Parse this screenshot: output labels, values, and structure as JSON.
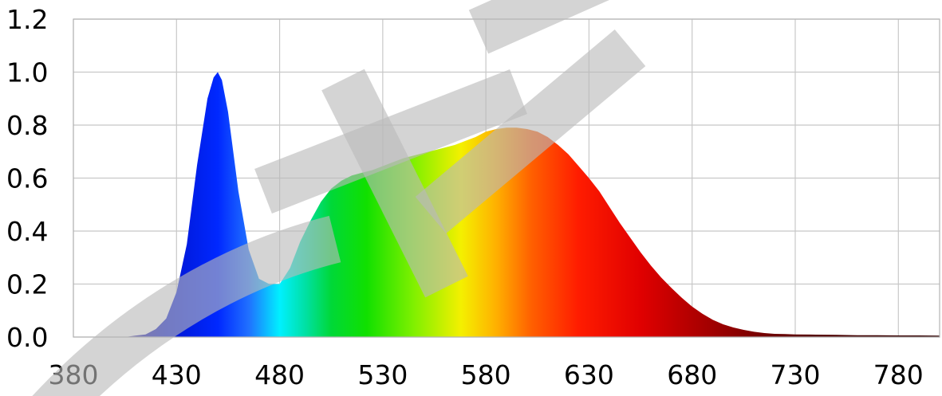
{
  "chart_data": {
    "type": "area",
    "title": "",
    "xlabel": "",
    "ylabel": "",
    "xlim": [
      380,
      800
    ],
    "ylim": [
      0,
      1.2
    ],
    "x_ticks": [
      380,
      430,
      480,
      530,
      580,
      630,
      680,
      730,
      780
    ],
    "y_ticks": [
      0.0,
      0.2,
      0.4,
      0.6,
      0.8,
      1.0,
      1.2
    ],
    "x_tick_labels": [
      "380",
      "430",
      "480",
      "530",
      "580",
      "630",
      "680",
      "730",
      "780"
    ],
    "y_tick_labels": [
      "0.0",
      "0.2",
      "0.4",
      "0.6",
      "0.8",
      "1.0",
      "1.2"
    ],
    "grid": true,
    "legend": "none",
    "fill": "spectral rainbow gradient by wavelength",
    "series": [
      {
        "x": [
          405,
          410,
          415,
          420,
          425,
          430,
          435,
          440,
          445,
          448,
          450,
          452,
          455,
          460,
          465,
          470,
          475,
          480,
          485,
          490,
          495,
          500,
          505,
          510,
          515,
          520,
          525,
          530,
          535,
          540,
          545,
          550,
          555,
          560,
          565,
          570,
          575,
          580,
          585,
          590,
          595,
          600,
          605,
          610,
          615,
          620,
          625,
          630,
          635,
          640,
          645,
          650,
          655,
          660,
          665,
          670,
          675,
          680,
          685,
          690,
          695,
          700,
          705,
          710,
          715,
          720,
          725,
          730,
          740,
          750,
          760,
          770,
          780,
          790,
          800
        ],
        "values": [
          0.0,
          0.005,
          0.01,
          0.03,
          0.07,
          0.17,
          0.35,
          0.65,
          0.9,
          0.98,
          1.0,
          0.97,
          0.85,
          0.55,
          0.33,
          0.22,
          0.2,
          0.2,
          0.26,
          0.36,
          0.44,
          0.51,
          0.56,
          0.59,
          0.61,
          0.62,
          0.63,
          0.645,
          0.66,
          0.675,
          0.685,
          0.695,
          0.705,
          0.715,
          0.725,
          0.74,
          0.755,
          0.775,
          0.785,
          0.79,
          0.79,
          0.785,
          0.775,
          0.755,
          0.725,
          0.69,
          0.645,
          0.6,
          0.55,
          0.49,
          0.43,
          0.375,
          0.32,
          0.27,
          0.225,
          0.185,
          0.148,
          0.115,
          0.088,
          0.065,
          0.048,
          0.036,
          0.027,
          0.02,
          0.015,
          0.012,
          0.011,
          0.01,
          0.009,
          0.008,
          0.007,
          0.007,
          0.006,
          0.006,
          0.005
        ]
      }
    ]
  },
  "colors": {
    "background": "#ffffff",
    "grid": "#c8c8c8",
    "watermark": "#b9b9b9"
  }
}
